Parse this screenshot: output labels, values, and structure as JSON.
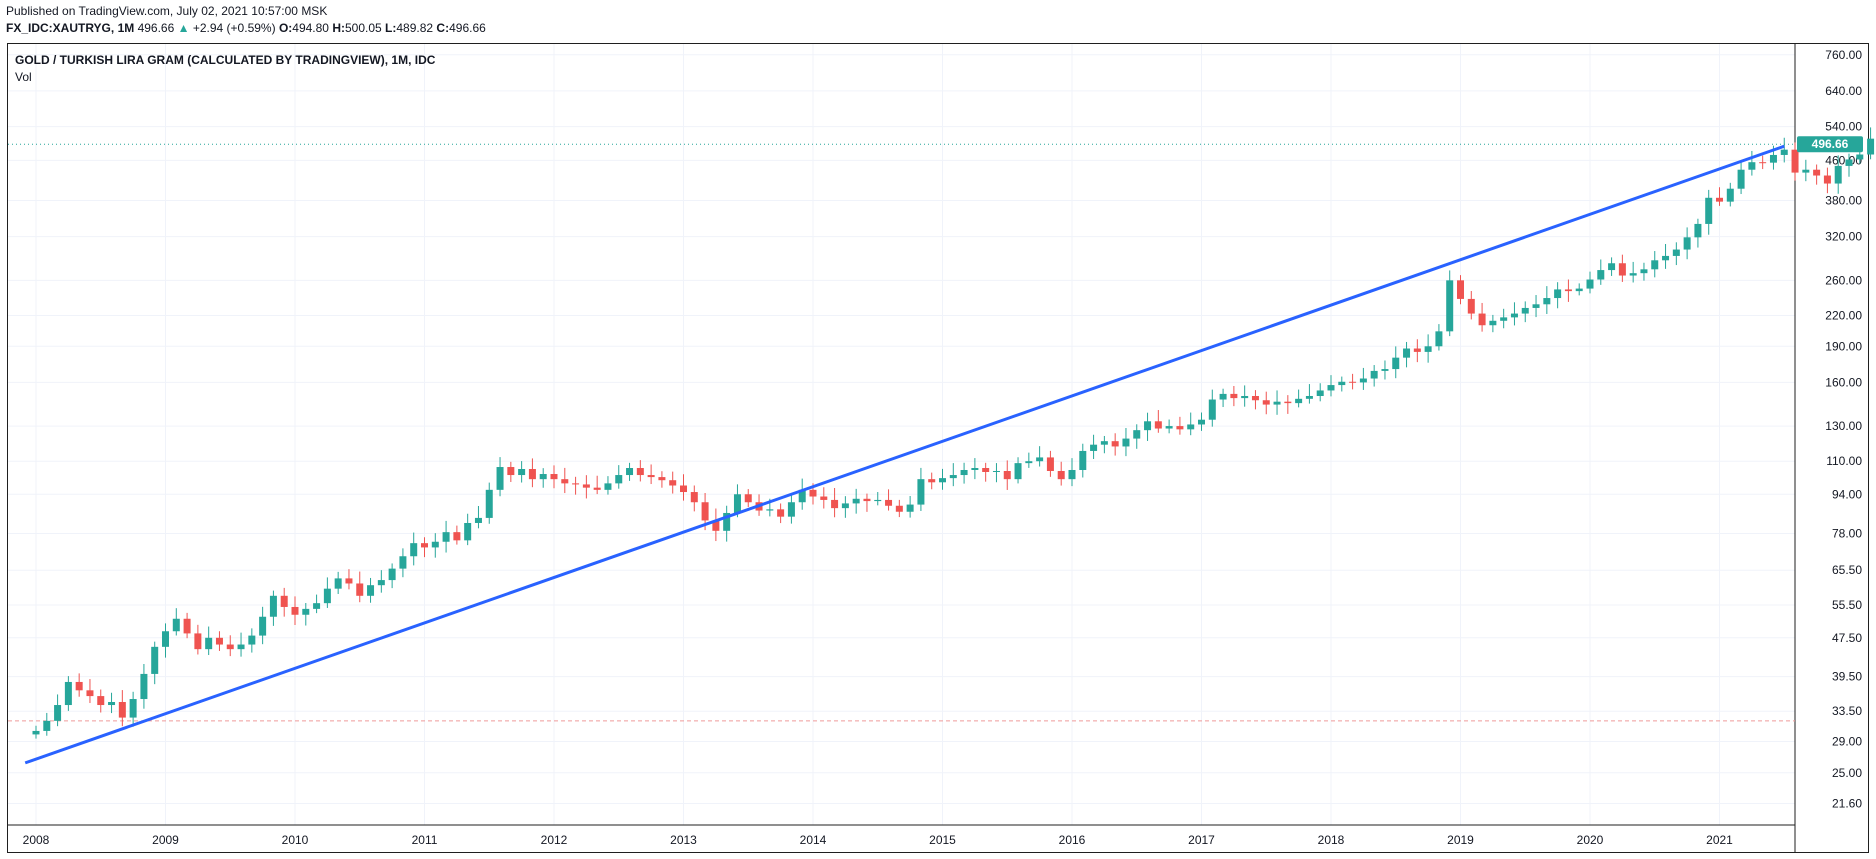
{
  "header": {
    "published": "Published on TradingView.com, July 02, 2021 10:57:00 MSK",
    "symbol": "FX_IDC:XAUTRYG, 1M",
    "last": "496.66",
    "change_arrow": "▲",
    "change": "+2.94 (+0.59%)",
    "o_label": "O:",
    "o_value": "494.80",
    "h_label": "H:",
    "h_value": "500.05",
    "l_label": "L:",
    "l_value": "489.82",
    "c_label": "C:",
    "c_value": "496.66"
  },
  "chart_title": "GOLD / TURKISH LIRA GRAM (CALCULATED BY TRADINGVIEW), 1M, IDC",
  "volume_label": "Vol",
  "colors": {
    "up": "#26a69a",
    "down": "#ef5350",
    "trendline": "#2962ff",
    "grid": "#f0f3fa"
  },
  "chart_data": {
    "type": "candlestick",
    "title": "GOLD / TURKISH LIRA GRAM (CALCULATED BY TRADINGVIEW), 1M, IDC",
    "scale": "log",
    "ylim": [
      19.5,
      800
    ],
    "price_ticks": [
      "760.00",
      "640.00",
      "540.00",
      "460.00",
      "380.00",
      "320.00",
      "260.00",
      "220.00",
      "190.00",
      "160.00",
      "130.00",
      "110.00",
      "94.00",
      "78.00",
      "65.50",
      "55.50",
      "47.50",
      "39.50",
      "33.50",
      "29.00",
      "25.00",
      "21.60"
    ],
    "time_ticks": [
      "2008",
      "2009",
      "2010",
      "2011",
      "2012",
      "2013",
      "2014",
      "2015",
      "2016",
      "2017",
      "2018",
      "2019",
      "2020",
      "2021"
    ],
    "start_month": "2008-01",
    "last_price": "496.66",
    "reference_level": 32.0,
    "trendline": {
      "from": {
        "date": "2007-12",
        "value": 26.2
      },
      "to": {
        "date": "2021-07",
        "value": 492
      }
    },
    "closes": [
      30.5,
      32.0,
      34.5,
      38.5,
      37.0,
      36.0,
      34.5,
      35.0,
      32.5,
      35.5,
      40.0,
      45.5,
      49.0,
      52.0,
      48.5,
      45.0,
      47.5,
      46.0,
      45.0,
      46.0,
      48.0,
      52.5,
      58.0,
      55.0,
      53.0,
      54.5,
      56.0,
      60.0,
      63.0,
      61.5,
      58.0,
      61.0,
      62.5,
      66.0,
      70.0,
      74.5,
      73.0,
      75.0,
      78.5,
      75.5,
      82.0,
      84.0,
      96.0,
      107.0,
      103.0,
      106.0,
      101.0,
      103.5,
      101.0,
      99.0,
      98.5,
      97.0,
      96.0,
      99.0,
      103.0,
      106.5,
      103.0,
      102.0,
      100.5,
      98.0,
      95.0,
      90.5,
      83.0,
      79.0,
      86.0,
      94.0,
      90.5,
      87.0,
      87.5,
      84.5,
      90.5,
      96.0,
      93.0,
      91.5,
      88.0,
      90.0,
      92.0,
      91.0,
      91.5,
      89.0,
      86.5,
      89.5,
      101.0,
      99.5,
      101.5,
      103.0,
      105.5,
      106.5,
      104.5,
      105.0,
      101.0,
      109.0,
      110.0,
      112.0,
      105.0,
      101.0,
      105.5,
      115.5,
      119.0,
      121.0,
      118.0,
      122.5,
      127.5,
      133.0,
      128.5,
      130.0,
      128.0,
      131.0,
      134.0,
      147.5,
      151.5,
      148.5,
      150.0,
      147.0,
      144.0,
      146.0,
      145.0,
      148.0,
      150.0,
      154.0,
      158.0,
      160.5,
      160.0,
      163.0,
      169.0,
      170.5,
      180.0,
      188.0,
      185.0,
      190.0,
      204.0,
      260.0,
      238.0,
      222.0,
      210.0,
      214.5,
      218.0,
      222.0,
      228.0,
      232.0,
      239.0,
      249.0,
      247.0,
      250.0,
      261.0,
      273.0,
      282.0,
      266.0,
      269.0,
      274.0,
      286.0,
      292.0,
      301.0,
      319.0,
      340.0,
      385.0,
      378.0,
      402.0,
      440.0,
      456.0,
      455.0,
      472.0,
      484.0,
      434.0,
      440.0,
      428.0,
      412.0,
      448.0,
      462.0,
      473.0,
      510.0,
      496.66
    ]
  }
}
